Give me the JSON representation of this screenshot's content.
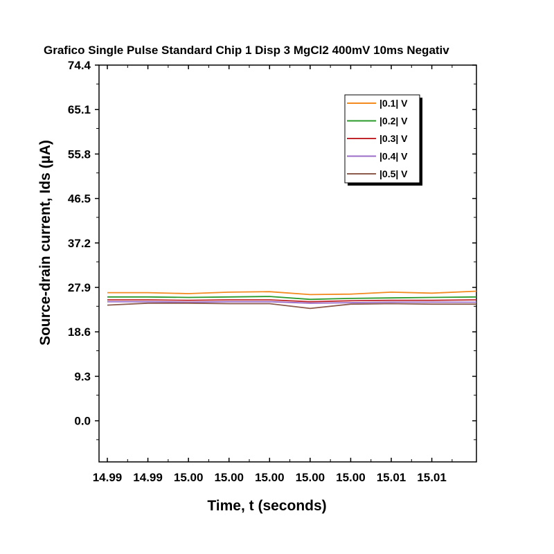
{
  "chart_data": {
    "type": "line",
    "title": "Grafico Single Pulse Standard Chip 1 Disp 3 MgCl2 400mV 10ms Negativ",
    "xlabel": "Time, t (seconds)",
    "ylabel": "Source-drain current, Ids (µA)",
    "ylim": [
      -8.6,
      74.4
    ],
    "xlim": [
      0,
      9.1
    ],
    "y_ticks": [
      0.0,
      9.3,
      18.6,
      27.9,
      37.2,
      46.5,
      55.8,
      65.1,
      74.4
    ],
    "y_tick_labels": [
      "0.0",
      "9.3",
      "18.6",
      "27.9",
      "37.2",
      "46.5",
      "55.8",
      "65.1",
      "74.4"
    ],
    "x_ticks": [
      0,
      1,
      2,
      3,
      4,
      5,
      6,
      7,
      8
    ],
    "x_tick_labels": [
      "14.99",
      "14.99",
      "15.00",
      "15.00",
      "15.00",
      "15.00",
      "15.00",
      "15.01",
      "15.01"
    ],
    "legend_position": "top-right",
    "grid": false,
    "series": [
      {
        "name": "|0.1| V",
        "color": "#f28a1e",
        "x": [
          0,
          1,
          2,
          3,
          4,
          5,
          6,
          7,
          8,
          9.1
        ],
        "y": [
          26.8,
          26.8,
          26.6,
          26.9,
          27.0,
          26.4,
          26.5,
          26.9,
          26.7,
          27.1
        ]
      },
      {
        "name": "|0.2| V",
        "color": "#2a9a2a",
        "x": [
          0,
          1,
          2,
          3,
          4,
          5,
          6,
          7,
          8,
          9.1
        ],
        "y": [
          25.9,
          25.9,
          25.8,
          25.9,
          26.0,
          25.4,
          25.6,
          25.7,
          25.8,
          25.9
        ]
      },
      {
        "name": "|0.3| V",
        "color": "#c0272d",
        "x": [
          0,
          1,
          2,
          3,
          4,
          5,
          6,
          7,
          8,
          9.1
        ],
        "y": [
          25.3,
          25.3,
          25.2,
          25.3,
          25.3,
          24.9,
          25.1,
          25.2,
          25.2,
          25.3
        ]
      },
      {
        "name": "|0.4| V",
        "color": "#9b6bc8",
        "x": [
          0,
          1,
          2,
          3,
          4,
          5,
          6,
          7,
          8,
          9.1
        ],
        "y": [
          24.9,
          24.9,
          24.8,
          24.9,
          24.9,
          24.6,
          24.7,
          24.8,
          24.8,
          24.8
        ]
      },
      {
        "name": "|0.5| V",
        "color": "#8b5a4a",
        "x": [
          0,
          1,
          2,
          3,
          4,
          5,
          6,
          7,
          8,
          9.1
        ],
        "y": [
          24.2,
          24.6,
          24.6,
          24.5,
          24.5,
          23.5,
          24.4,
          24.5,
          24.4,
          24.4
        ]
      }
    ]
  }
}
